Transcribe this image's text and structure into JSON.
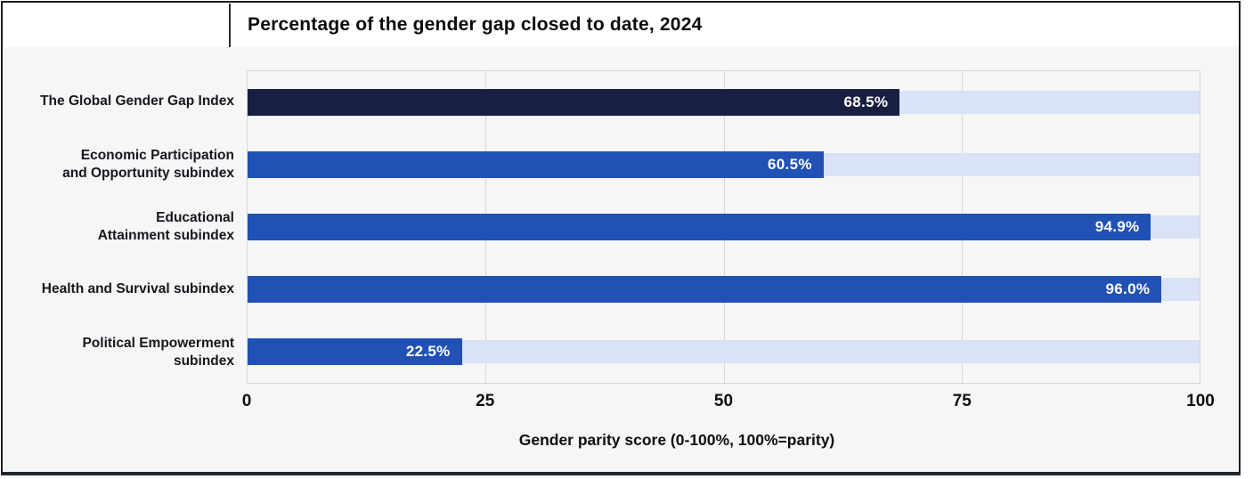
{
  "chart_data": {
    "type": "bar",
    "orientation": "horizontal",
    "title": "Percentage of the gender gap closed to date, 2024",
    "categories": [
      "The Global Gender Gap Index",
      "Economic Participation\nand Opportunity subindex",
      "Educational\nAttainment subindex",
      "Health and Survival subindex",
      "Political Empowerment\nsubindex"
    ],
    "values": [
      68.5,
      60.5,
      94.9,
      96.0,
      22.5
    ],
    "value_labels": [
      "68.5%",
      "60.5%",
      "94.9%",
      "96.0%",
      "22.5%"
    ],
    "xlabel": "Gender parity score (0-100%, 100%=parity)",
    "xticks": [
      "0",
      "25",
      "50",
      "75",
      "100"
    ],
    "xtick_values": [
      0,
      25,
      50,
      75,
      100
    ],
    "xlim": [
      0,
      100
    ],
    "grid": true,
    "legend": false,
    "colors": {
      "bar_colors": [
        "#181f40",
        "#2151b5",
        "#2151b5",
        "#2151b5",
        "#2151b5"
      ],
      "track_color": "#d9e2f6",
      "plot_background": "#f6f6f7",
      "header_background": "#ffffff",
      "gridline": "#d6d6d6",
      "value_text": "#ffffff",
      "card_border": "#1e1e1e"
    }
  }
}
